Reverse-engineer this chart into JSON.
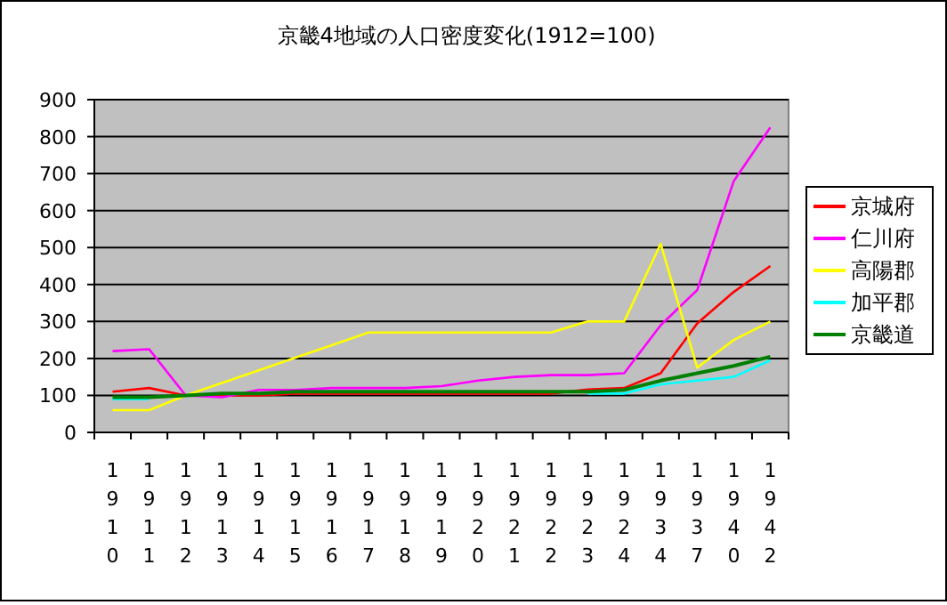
{
  "chart_data": {
    "type": "line",
    "title": "京畿4地域の人口密度変化(1912=100)",
    "categories": [
      "1910",
      "1911",
      "1912",
      "1913",
      "1914",
      "1915",
      "1916",
      "1917",
      "1918",
      "1919",
      "1920",
      "1921",
      "1922",
      "1923",
      "1924",
      "1934",
      "1937",
      "1940",
      "1942"
    ],
    "series": [
      {
        "name": "京城府",
        "color": "#ff0000",
        "values": [
          110,
          120,
          100,
          100,
          100,
          105,
          105,
          105,
          105,
          105,
          105,
          105,
          105,
          116,
          120,
          160,
          295,
          380,
          450
        ]
      },
      {
        "name": "仁川府",
        "color": "#ff00ff",
        "values": [
          220,
          225,
          100,
          95,
          115,
          115,
          120,
          120,
          120,
          125,
          140,
          150,
          155,
          155,
          160,
          290,
          385,
          680,
          825
        ]
      },
      {
        "name": "高陽郡",
        "color": "#ffff00",
        "values": [
          60,
          60,
          100,
          134,
          168,
          202,
          236,
          270,
          270,
          270,
          270,
          270,
          270,
          300,
          300,
          510,
          175,
          250,
          300
        ]
      },
      {
        "name": "加平郡",
        "color": "#00ffff",
        "values": [
          90,
          90,
          null,
          null,
          null,
          null,
          null,
          null,
          null,
          null,
          null,
          null,
          null,
          105,
          105,
          130,
          140,
          150,
          195
        ]
      },
      {
        "name": "京畿道",
        "color": "#008000",
        "values": [
          95,
          95,
          100,
          105,
          105,
          110,
          110,
          110,
          110,
          110,
          110,
          110,
          110,
          110,
          115,
          140,
          160,
          180,
          205
        ]
      }
    ],
    "ylim": [
      0,
      900
    ],
    "yticks": [
      0,
      100,
      200,
      300,
      400,
      500,
      600,
      700,
      800,
      900
    ],
    "grid": "y",
    "legend": "right",
    "marker": "none",
    "line_style": "solid"
  }
}
